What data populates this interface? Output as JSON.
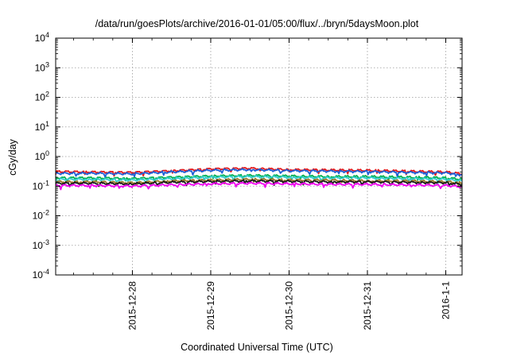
{
  "chart_data": {
    "type": "line",
    "title": "/data/run/goesPlots/archive/2016-01-01/05:00/flux/../bryn/5daysMoon.plot",
    "xlabel": "Coordinated Universal Time (UTC)",
    "ylabel": "cGy/day",
    "yscale": "log",
    "ylim": [
      0.0001,
      10000
    ],
    "y_ticks": [
      {
        "base": "10",
        "exp": "-4"
      },
      {
        "base": "10",
        "exp": "-3"
      },
      {
        "base": "10",
        "exp": "-2"
      },
      {
        "base": "10",
        "exp": "-1"
      },
      {
        "base": "10",
        "exp": "0"
      },
      {
        "base": "10",
        "exp": "1"
      },
      {
        "base": "10",
        "exp": "2"
      },
      {
        "base": "10",
        "exp": "3"
      },
      {
        "base": "10",
        "exp": "4"
      }
    ],
    "xlim": [
      "2015-12-27T00:30",
      "2016-01-01T05:00"
    ],
    "x_ticks": [
      {
        "label": "2015-12-28",
        "value": "2015-12-28T00:00"
      },
      {
        "label": "2015-12-29",
        "value": "2015-12-29T00:00"
      },
      {
        "label": "2015-12-30",
        "value": "2015-12-30T00:00"
      },
      {
        "label": "2015-12-31",
        "value": "2015-12-31T00:00"
      },
      {
        "label": "2016-1-1",
        "value": "2016-01-01T00:00"
      }
    ],
    "grid": true,
    "x_dates": [
      "2015-12-27T00:30",
      "2015-12-27T12:00",
      "2015-12-28T00:00",
      "2015-12-28T12:00",
      "2015-12-29T00:00",
      "2015-12-29T12:00",
      "2015-12-30T00:00",
      "2015-12-30T12:00",
      "2015-12-31T00:00",
      "2015-12-31T12:00",
      "2016-01-01T00:00",
      "2016-01-01T05:00"
    ],
    "series": [
      {
        "color": "#e41a1c",
        "values": [
          0.31,
          0.3,
          0.29,
          0.33,
          0.38,
          0.4,
          0.36,
          0.35,
          0.34,
          0.32,
          0.3,
          0.26
        ]
      },
      {
        "color": "#1f5fd6",
        "values": [
          0.27,
          0.27,
          0.26,
          0.3,
          0.34,
          0.36,
          0.33,
          0.32,
          0.31,
          0.29,
          0.28,
          0.24
        ]
      },
      {
        "color": "#00b050",
        "values": [
          0.19,
          0.19,
          0.18,
          0.2,
          0.22,
          0.23,
          0.22,
          0.21,
          0.21,
          0.2,
          0.19,
          0.17
        ]
      },
      {
        "color": "#33cccc",
        "values": [
          0.17,
          0.17,
          0.16,
          0.18,
          0.2,
          0.21,
          0.2,
          0.19,
          0.19,
          0.18,
          0.17,
          0.15
        ]
      },
      {
        "color": "#9a7a2a",
        "values": [
          0.14,
          0.14,
          0.13,
          0.15,
          0.16,
          0.17,
          0.16,
          0.16,
          0.15,
          0.15,
          0.14,
          0.13
        ]
      },
      {
        "color": "#1a1a1a",
        "values": [
          0.125,
          0.125,
          0.12,
          0.135,
          0.145,
          0.15,
          0.145,
          0.14,
          0.14,
          0.135,
          0.13,
          0.115
        ]
      },
      {
        "color": "#ee00ee",
        "values": [
          0.105,
          0.105,
          0.1,
          0.11,
          0.12,
          0.125,
          0.12,
          0.115,
          0.115,
          0.11,
          0.105,
          0.095
        ]
      }
    ]
  }
}
